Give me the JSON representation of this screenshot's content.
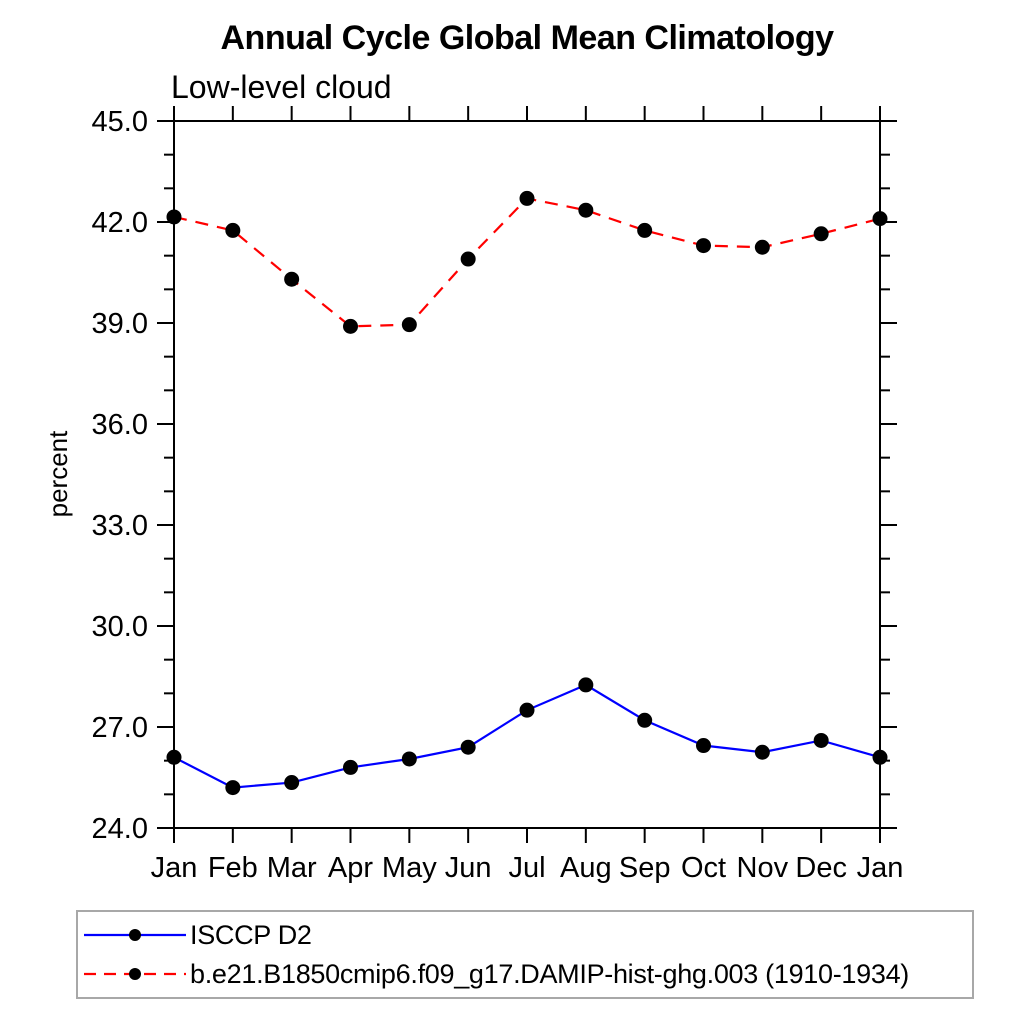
{
  "chart_data": {
    "type": "line",
    "title": "Annual Cycle Global Mean Climatology",
    "subtitle": "Low-level cloud",
    "ylabel": "percent",
    "xlabel": "",
    "categories": [
      "Jan",
      "Feb",
      "Mar",
      "Apr",
      "May",
      "Jun",
      "Jul",
      "Aug",
      "Sep",
      "Oct",
      "Nov",
      "Dec",
      "Jan"
    ],
    "ylim": [
      24.0,
      45.0
    ],
    "ytick_major_values": [
      24,
      27,
      30,
      33,
      36,
      39,
      42,
      45
    ],
    "ytick_labels": [
      "24.0",
      "27.0",
      "30.0",
      "33.0",
      "36.0",
      "39.0",
      "42.0",
      "45.0"
    ],
    "ytick_minor_step": 1,
    "grid": false,
    "legend_position": "bottom-left-box",
    "series": [
      {
        "name": "ISCCP D2",
        "color": "#0000ff",
        "line_style": "solid",
        "marker": "circle",
        "marker_color": "#000000",
        "values": [
          26.1,
          25.2,
          25.35,
          25.8,
          26.05,
          26.4,
          27.5,
          28.25,
          27.2,
          26.45,
          26.25,
          26.6,
          26.1
        ]
      },
      {
        "name": "b.e21.B1850cmip6.f09_g17.DAMIP-hist-ghg.003 (1910-1934)",
        "color": "#ff0000",
        "line_style": "dashed",
        "marker": "circle",
        "marker_color": "#000000",
        "values": [
          42.15,
          41.75,
          40.3,
          38.9,
          38.95,
          40.9,
          42.7,
          42.35,
          41.75,
          41.3,
          41.25,
          41.65,
          42.1
        ]
      }
    ]
  },
  "colors": {
    "axis": "#000000",
    "tick": "#000000",
    "marker": "#000000",
    "legend_border": "#a8a8a8",
    "background": "#ffffff"
  }
}
